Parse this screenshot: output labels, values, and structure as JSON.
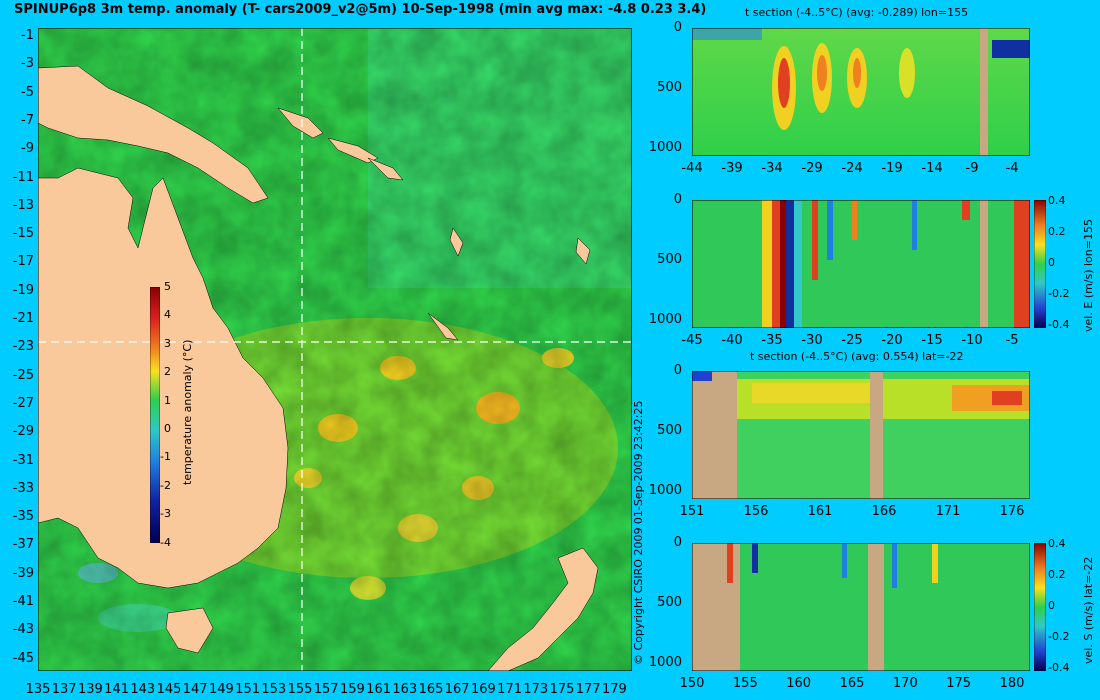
{
  "header": {
    "title": "SPINUP6p8 3m temp. anomaly (T- cars2009_v2@5m) 10-Sep-1998 (min avg max: -4.8 0.23 3.4)"
  },
  "copyright": "© Copyright CSIRO 2009   01-Sep-2009 23:42:25",
  "colors": {
    "background": "#00ccff",
    "land": "#f9c89b",
    "section_land": "#c8a882",
    "ocean_base": "#2fcf4a"
  },
  "chart_data": [
    {
      "type": "heatmap",
      "title": "SPINUP6p8 3m temp. anomaly (T- cars2009_v2@5m) 10-Sep-1998 (min avg max: -4.8 0.23 3.4)",
      "x_ticks": [
        "135",
        "137",
        "139",
        "141",
        "143",
        "145",
        "147",
        "149",
        "151",
        "153",
        "155",
        "157",
        "159",
        "161",
        "163",
        "165",
        "167",
        "169",
        "171",
        "173",
        "175",
        "177",
        "179"
      ],
      "y_ticks": [
        "-1",
        "-3",
        "-5",
        "-7",
        "-9",
        "-11",
        "-13",
        "-15",
        "-17",
        "-19",
        "-21",
        "-23",
        "-25",
        "-27",
        "-29",
        "-31",
        "-33",
        "-35",
        "-37",
        "-39",
        "-41",
        "-43",
        "-45"
      ],
      "xlim": [
        135,
        180
      ],
      "ylim": [
        -45,
        0
      ],
      "crosshair": {
        "lon": 155,
        "lat": -22
      },
      "colorbar": {
        "label": "temperature anomaly (°C)",
        "ticks": [
          "5",
          "4",
          "3",
          "2",
          "1",
          "0",
          "-1",
          "-2",
          "-3",
          "-4"
        ],
        "range": [
          -4,
          5
        ]
      }
    },
    {
      "type": "heatmap",
      "title": "t section (-4..5°C) (avg: -0.289) lon=155",
      "x_ticks": [
        "-44",
        "-39",
        "-34",
        "-29",
        "-24",
        "-19",
        "-14",
        "-9",
        "-4"
      ],
      "y_ticks": [
        "0",
        "500",
        "1000"
      ]
    },
    {
      "type": "heatmap",
      "title": "",
      "x_ticks": [
        "-45",
        "-40",
        "-35",
        "-30",
        "-25",
        "-20",
        "-15",
        "-10",
        "-5"
      ],
      "y_ticks": [
        "0",
        "500",
        "1000"
      ],
      "colorbar": {
        "label": "vel. E (m/s) lon=155",
        "ticks": [
          "0.4",
          "0.2",
          "0",
          "-0.2",
          "-0.4"
        ]
      }
    },
    {
      "type": "heatmap",
      "title": "t section (-4..5°C) (avg: 0.554) lat=-22",
      "x_ticks": [
        "151",
        "156",
        "161",
        "166",
        "171",
        "176"
      ],
      "y_ticks": [
        "0",
        "500",
        "1000"
      ]
    },
    {
      "type": "heatmap",
      "title": "",
      "x_ticks": [
        "150",
        "155",
        "160",
        "165",
        "170",
        "175",
        "180"
      ],
      "y_ticks": [
        "0",
        "500",
        "1000"
      ],
      "colorbar": {
        "label": "vel. S (m/s) lat=-22",
        "ticks": [
          "0.4",
          "0.2",
          "0",
          "-0.2",
          "-0.4"
        ]
      }
    }
  ]
}
